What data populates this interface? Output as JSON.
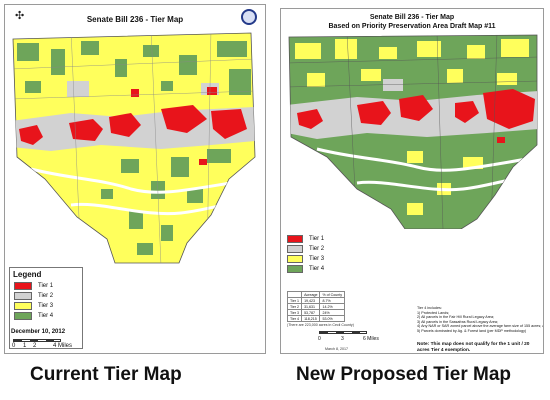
{
  "left_map": {
    "title": "Senate Bill 236 - Tier Map",
    "legend_title": "Legend",
    "legend": [
      {
        "label": "Tier 1",
        "color": "#e8141b"
      },
      {
        "label": "Tier 2",
        "color": "#d2d2d2"
      },
      {
        "label": "Tier 3",
        "color": "#ffff5c"
      },
      {
        "label": "Tier 4",
        "color": "#6ea55a"
      }
    ],
    "date": "December 10, 2012",
    "scale": {
      "t0": "0",
      "t1": "1",
      "t2": "2",
      "t3": "4 Miles"
    }
  },
  "right_map": {
    "title": "Senate Bill 236 - Tier Map",
    "subtitle": "Based on Priority Preservation Area Draft Map #11",
    "legend": [
      {
        "label": "Tier 1",
        "color": "#e8141b"
      },
      {
        "label": "Tier 2",
        "color": "#d2d2d2"
      },
      {
        "label": "Tier 3",
        "color": "#ffff5c"
      },
      {
        "label": "Tier 4",
        "color": "#6ea55a"
      }
    ],
    "table": {
      "headers": [
        "",
        "Acreage",
        "% of County"
      ],
      "rows": [
        [
          "Tier 1",
          "19,423",
          "8.7%"
        ],
        [
          "Tier 2",
          "31,631",
          "14.2%"
        ],
        [
          "Tier 3",
          "53,787",
          "24%"
        ],
        [
          "Tier 4",
          "118,215",
          "53.0%"
        ]
      ]
    },
    "table_note": "(There are 223,000 acres in Cecil County)",
    "scale": {
      "t0": "0",
      "t1": "3",
      "t2": "6 Miles"
    },
    "date": "March 8, 2017",
    "tier4_heading": "Tier 4 includes:",
    "tier4_items": [
      "1) Protected Lands;",
      "2) All parcels in the Fair Hill Rural Legacy Area;",
      "3) All parcels in the Sassafras Rural Legacy Area;",
      "4) Any NAR or SAR zoned parcel above the average farm size of 155 acres; and",
      "5) Parcels dominated by Ag. & Forest land (per MDP methodology)"
    ],
    "note": "Note: This map does not qualify for the 1 unit / 20 acres Tier 4 exemption."
  },
  "captions": {
    "left": "Current Tier Map",
    "right": "New Proposed Tier Map"
  }
}
